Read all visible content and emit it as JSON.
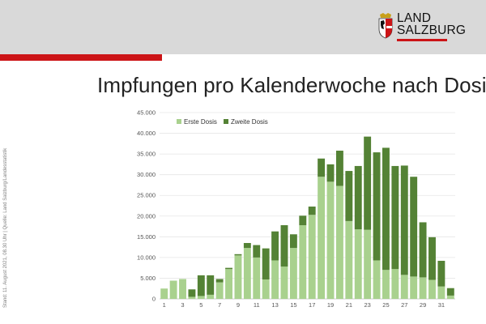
{
  "logo": {
    "line1": "LAND",
    "line2": "SALZBURG"
  },
  "colors": {
    "first_dose": "#a9d18e",
    "second_dose": "#548235",
    "accent": "#cc1417",
    "header_band": "#d9d9d9"
  },
  "side_note": "Stand: 11. August 2021, 08.30 Uhr  |  Quelle: Land Salzburg/Landesstatistik",
  "chart_data": {
    "type": "bar",
    "stacked": true,
    "title": "Impfungen pro Kalenderwoche nach Dosis",
    "xlabel": "",
    "ylabel": "",
    "ylim": [
      0,
      45000
    ],
    "yticks": [
      0,
      5000,
      10000,
      15000,
      20000,
      25000,
      30000,
      35000,
      40000,
      45000
    ],
    "ytick_labels": [
      "0",
      "5.000",
      "10.000",
      "15.000",
      "20.000",
      "25.000",
      "30.000",
      "35.000",
      "40.000",
      "45.000"
    ],
    "categories": [
      1,
      2,
      3,
      4,
      5,
      6,
      7,
      8,
      9,
      10,
      11,
      12,
      13,
      14,
      15,
      16,
      17,
      18,
      19,
      20,
      21,
      22,
      23,
      24,
      25,
      26,
      27,
      28,
      29,
      30,
      31,
      32
    ],
    "xtick_labels": [
      "1",
      "",
      "3",
      "",
      "5",
      "",
      "7",
      "",
      "9",
      "",
      "11",
      "",
      "13",
      "",
      "15",
      "",
      "17",
      "",
      "19",
      "",
      "21",
      "",
      "23",
      "",
      "25",
      "",
      "27",
      "",
      "29",
      "",
      "31",
      ""
    ],
    "legend": {
      "position": "top-left",
      "entries": [
        "Erste Dosis",
        "Zweite Dosis"
      ]
    },
    "series": [
      {
        "name": "Erste Dosis",
        "values": [
          2500,
          4400,
          4800,
          500,
          700,
          1000,
          4000,
          7200,
          10500,
          12300,
          10000,
          4700,
          9300,
          7800,
          12300,
          17800,
          20300,
          29500,
          28300,
          27300,
          18800,
          16800,
          16700,
          9300,
          7000,
          7200,
          5800,
          5400,
          5200,
          4600,
          3000,
          800
        ]
      },
      {
        "name": "Zweite Dosis",
        "values": [
          0,
          0,
          0,
          1800,
          5000,
          4700,
          800,
          300,
          300,
          1200,
          3000,
          7500,
          7000,
          10000,
          3300,
          2300,
          2000,
          4400,
          4200,
          8500,
          12100,
          15300,
          22500,
          26100,
          29500,
          24900,
          26400,
          24100,
          13300,
          10300,
          6200,
          1800
        ]
      }
    ]
  }
}
